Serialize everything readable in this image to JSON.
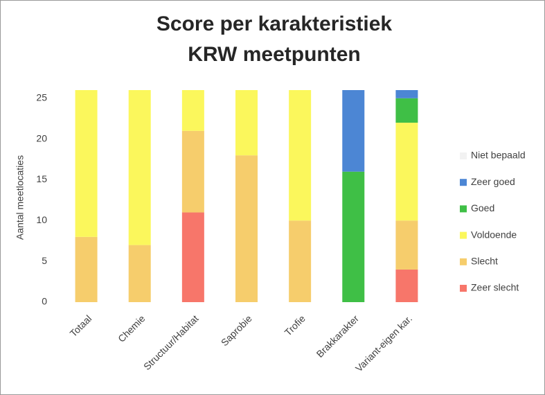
{
  "chart_data": {
    "type": "stacked_bar",
    "title": [
      "Score per karakteristiek",
      "KRW meetpunten"
    ],
    "y_label": "Aantal meetlocaties",
    "categories": [
      "Totaal",
      "Chemie",
      "Structuur/Habitat",
      "Saprobie",
      "Trofie",
      "Brakkarakter",
      "Variant-eigen kar."
    ],
    "series": [
      {
        "name": "Zeer slecht",
        "color": "#f7766a",
        "values": [
          0,
          0,
          11,
          0,
          0,
          0,
          4
        ]
      },
      {
        "name": "Slecht",
        "color": "#f6cd6c",
        "values": [
          8,
          7,
          10,
          18,
          10,
          0,
          6
        ]
      },
      {
        "name": "Voldoende",
        "color": "#fbf75c",
        "values": [
          18,
          19,
          5,
          8,
          16,
          0,
          12
        ]
      },
      {
        "name": "Goed",
        "color": "#3fbf46",
        "values": [
          0,
          0,
          0,
          0,
          0,
          16,
          3
        ]
      },
      {
        "name": "Zeer goed",
        "color": "#4c86d4",
        "values": [
          0,
          0,
          0,
          0,
          0,
          10,
          1
        ]
      },
      {
        "name": "Niet bepaald",
        "color": "#f2f2f2",
        "values": [
          0,
          0,
          0,
          0,
          0,
          0,
          0
        ]
      }
    ],
    "ylim": [
      0,
      26
    ],
    "yticks": [
      0,
      5,
      10,
      15,
      20,
      25
    ],
    "grid": false,
    "legend": "right"
  }
}
